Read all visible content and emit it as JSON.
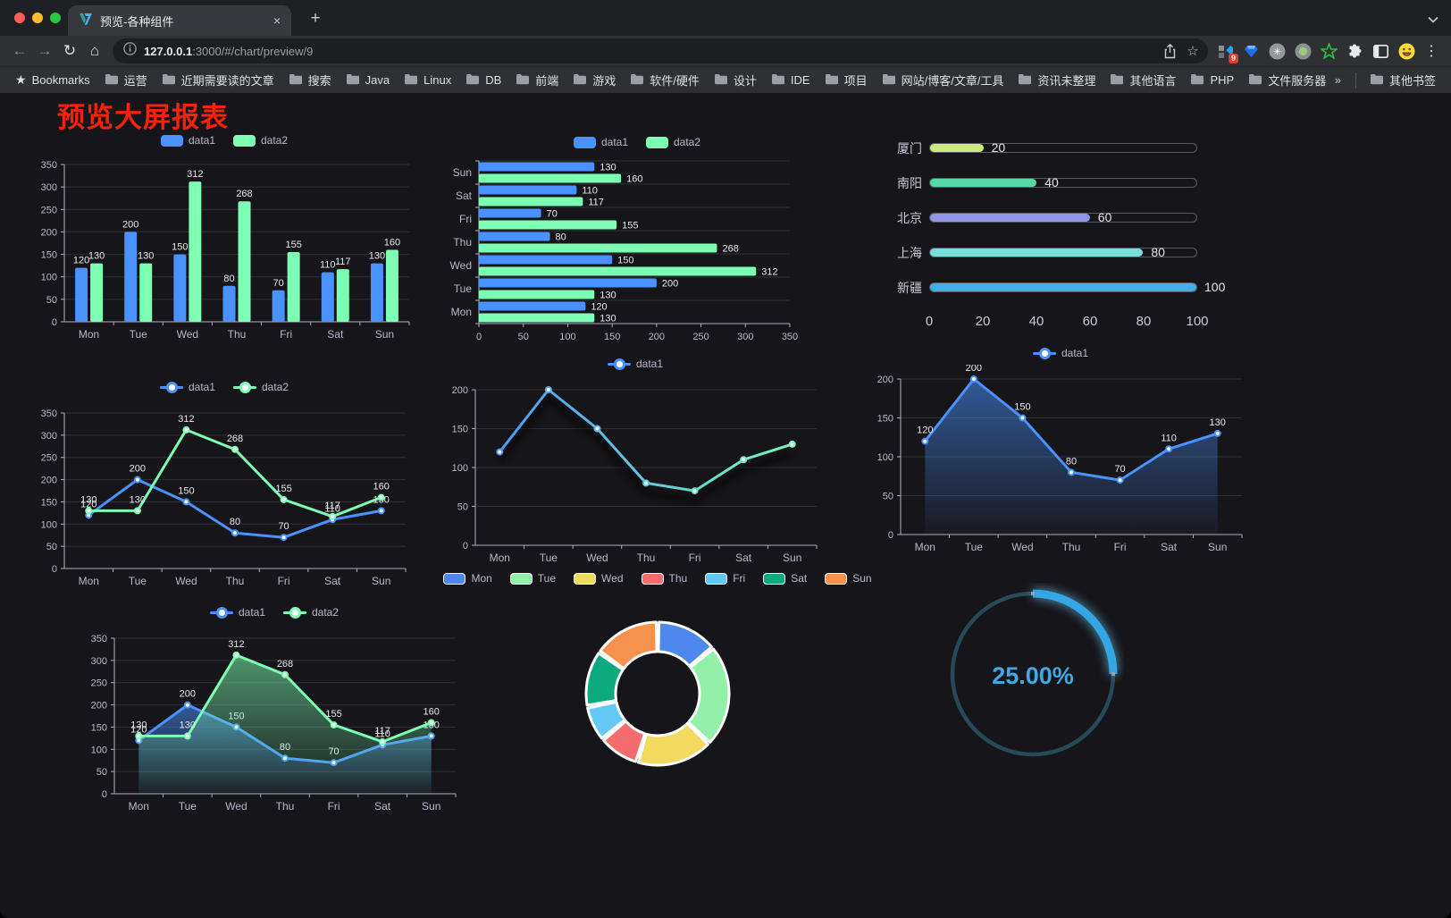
{
  "browser": {
    "tab": {
      "title": "预览-各种组件",
      "close_glyph": "×"
    },
    "new_tab_glyph": "+",
    "nav": {
      "back": "←",
      "forward": "→",
      "reload": "↻",
      "home": "⌂",
      "more": "⋮"
    },
    "url": {
      "host": "127.0.0.1",
      "rest": ":3000/#/chart/preview/9"
    },
    "extension_badge": "9",
    "bookmarks_label": "Bookmarks",
    "bookmarks": [
      "运营",
      "近期需要读的文章",
      "搜索",
      "Java",
      "Linux",
      "DB",
      "前端",
      "游戏",
      "软件/硬件",
      "设计",
      "IDE",
      "项目",
      "网站/博客/文章/工具",
      "资讯未整理",
      "其他语言",
      "PHP",
      "文件服务器"
    ],
    "bookmarks_overflow": "»",
    "other_bookmarks": "其他书签"
  },
  "page": {
    "title": "预览大屏报表",
    "title_color": "#f5220d"
  },
  "chart_data": [
    {
      "id": "grouped-bar",
      "type": "bar",
      "categories": [
        "Mon",
        "Tue",
        "Wed",
        "Thu",
        "Fri",
        "Sat",
        "Sun"
      ],
      "series": [
        {
          "name": "data1",
          "color": "#4992ff",
          "values": [
            120,
            200,
            150,
            80,
            70,
            110,
            130
          ]
        },
        {
          "name": "data2",
          "color": "#7cffb2",
          "values": [
            130,
            130,
            312,
            268,
            155,
            117,
            160
          ]
        }
      ],
      "ylim": [
        0,
        350
      ],
      "ystep": 50,
      "value_labels": true,
      "legend_position": "top",
      "grid": true
    },
    {
      "id": "grouped-bar-horizontal",
      "type": "bar-horizontal",
      "categories": [
        "Mon",
        "Tue",
        "Wed",
        "Thu",
        "Fri",
        "Sat",
        "Sun"
      ],
      "series": [
        {
          "name": "data1",
          "color": "#4992ff",
          "values": [
            120,
            200,
            150,
            80,
            70,
            110,
            130
          ]
        },
        {
          "name": "data2",
          "color": "#7cffb2",
          "values": [
            130,
            130,
            312,
            268,
            155,
            117,
            160
          ]
        }
      ],
      "xlim": [
        0,
        350
      ],
      "xstep": 50,
      "value_labels": true,
      "legend_position": "top",
      "grid": true
    },
    {
      "id": "city-progress",
      "type": "progress",
      "max": 100,
      "axis_ticks": [
        0,
        20,
        40,
        60,
        80,
        100
      ],
      "items": [
        {
          "label": "厦门",
          "value": 20,
          "color": "#cde87e"
        },
        {
          "label": "南阳",
          "value": 40,
          "color": "#57d9a5"
        },
        {
          "label": "北京",
          "value": 60,
          "color": "#9095e8"
        },
        {
          "label": "上海",
          "value": 80,
          "color": "#79dfd9"
        },
        {
          "label": "新疆",
          "value": 100,
          "color": "#3fb1e3"
        }
      ]
    },
    {
      "id": "line-two-series",
      "type": "line",
      "categories": [
        "Mon",
        "Tue",
        "Wed",
        "Thu",
        "Fri",
        "Sat",
        "Sun"
      ],
      "series": [
        {
          "name": "data1",
          "color": "#4992ff",
          "values": [
            120,
            200,
            150,
            80,
            70,
            110,
            130
          ]
        },
        {
          "name": "data2",
          "color": "#7cffb2",
          "values": [
            130,
            130,
            312,
            268,
            155,
            117,
            160
          ]
        }
      ],
      "ylim": [
        0,
        350
      ],
      "ystep": 50,
      "value_labels": true,
      "legend_position": "top",
      "grid": true
    },
    {
      "id": "line-gradient",
      "type": "line",
      "categories": [
        "Mon",
        "Tue",
        "Wed",
        "Thu",
        "Fri",
        "Sat",
        "Sun"
      ],
      "series": [
        {
          "name": "data1",
          "color": "#4992ff",
          "gradient": [
            "#4992ff",
            "#7cffb2"
          ],
          "values": [
            120,
            200,
            150,
            80,
            70,
            110,
            130
          ]
        }
      ],
      "ylim": [
        0,
        200
      ],
      "ystep": 50,
      "value_labels": false,
      "shadow": true,
      "legend_position": "top",
      "grid": true
    },
    {
      "id": "area-single",
      "type": "line",
      "categories": [
        "Mon",
        "Tue",
        "Wed",
        "Thu",
        "Fri",
        "Sat",
        "Sun"
      ],
      "series": [
        {
          "name": "data1",
          "color": "#4992ff",
          "area": true,
          "values": [
            120,
            200,
            150,
            80,
            70,
            110,
            130
          ]
        }
      ],
      "ylim": [
        0,
        200
      ],
      "ystep": 50,
      "value_labels": true,
      "legend_position": "top",
      "grid": true
    },
    {
      "id": "area-two",
      "type": "line",
      "categories": [
        "Mon",
        "Tue",
        "Wed",
        "Thu",
        "Fri",
        "Sat",
        "Sun"
      ],
      "series": [
        {
          "name": "data1",
          "color": "#4992ff",
          "area": true,
          "values": [
            120,
            200,
            150,
            80,
            70,
            110,
            130
          ]
        },
        {
          "name": "data2",
          "color": "#7cffb2",
          "area": true,
          "values": [
            130,
            130,
            312,
            268,
            155,
            117,
            160
          ]
        }
      ],
      "ylim": [
        0,
        350
      ],
      "ystep": 50,
      "value_labels": true,
      "legend_position": "top",
      "grid": true
    },
    {
      "id": "weekday-donut",
      "type": "pie",
      "legend_position": "top",
      "items": [
        {
          "label": "Mon",
          "value": 120,
          "color": "#4e87ed"
        },
        {
          "label": "Tue",
          "value": 200,
          "color": "#93f0a8"
        },
        {
          "label": "Wed",
          "value": 150,
          "color": "#f2d95f"
        },
        {
          "label": "Thu",
          "value": 80,
          "color": "#f56c6c"
        },
        {
          "label": "Fri",
          "value": 70,
          "color": "#63c8f4"
        },
        {
          "label": "Sat",
          "value": 110,
          "color": "#0caa7e"
        },
        {
          "label": "Sun",
          "value": 130,
          "color": "#f6924e"
        }
      ]
    },
    {
      "id": "percent-gauge",
      "type": "gauge",
      "value": 25,
      "display": "25.00%",
      "progress_color": "#33a6e4",
      "track_color": "#254b59",
      "text_color": "#42a7e3"
    }
  ]
}
